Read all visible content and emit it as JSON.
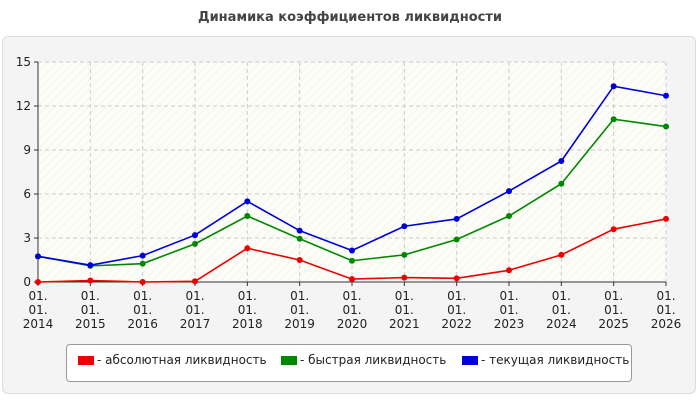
{
  "chart_data": {
    "type": "line",
    "title": "Динамика коэффициентов ликвидности",
    "xlabel": "",
    "ylabel": "",
    "categories": [
      [
        "01.",
        "01.",
        "2014"
      ],
      [
        "01.",
        "01.",
        "2015"
      ],
      [
        "01.",
        "01.",
        "2016"
      ],
      [
        "01.",
        "01.",
        "2017"
      ],
      [
        "01.",
        "01.",
        "2018"
      ],
      [
        "01.",
        "01.",
        "2019"
      ],
      [
        "01.",
        "01.",
        "2020"
      ],
      [
        "01.",
        "01.",
        "2021"
      ],
      [
        "01.",
        "01.",
        "2022"
      ],
      [
        "01.",
        "01.",
        "2023"
      ],
      [
        "01.",
        "01.",
        "2024"
      ],
      [
        "01.",
        "01.",
        "2025"
      ],
      [
        "01.",
        "01.",
        "2026"
      ]
    ],
    "ylim": [
      0,
      15
    ],
    "yticks": [
      "0",
      "3",
      "6",
      "9",
      "12",
      "15"
    ],
    "grid": true,
    "legend_position": "bottom",
    "series": [
      {
        "name": "- абсолютная ликвидность",
        "color": "#ee0000",
        "values": [
          0.0,
          0.1,
          0.0,
          0.05,
          2.3,
          1.5,
          0.2,
          0.3,
          0.25,
          0.8,
          1.85,
          3.6,
          4.3
        ]
      },
      {
        "name": "- быстрая ликвидность",
        "color": "#008800",
        "values": [
          1.75,
          1.1,
          1.25,
          2.6,
          4.5,
          2.95,
          1.45,
          1.85,
          2.9,
          4.5,
          6.7,
          11.1,
          10.6
        ]
      },
      {
        "name": "- текущая ликвидность",
        "color": "#0000dd",
        "values": [
          1.75,
          1.15,
          1.8,
          3.2,
          5.5,
          3.5,
          2.15,
          3.8,
          4.3,
          6.2,
          8.25,
          13.35,
          12.7
        ]
      }
    ]
  }
}
